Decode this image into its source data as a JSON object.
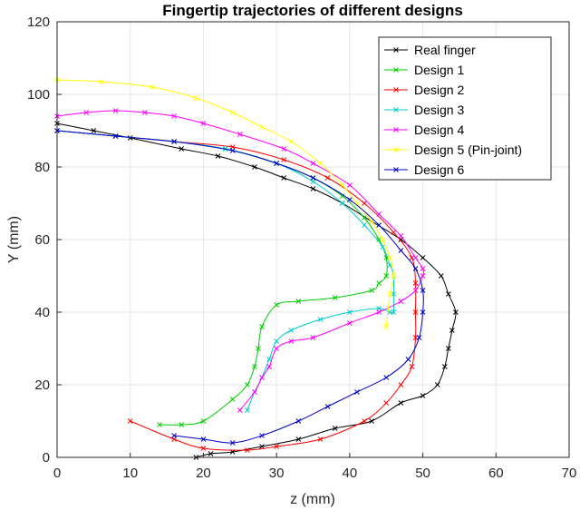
{
  "chart_data": {
    "type": "line",
    "title": "Fingertip trajectories of different designs",
    "xlabel": "z (mm)",
    "ylabel": "Y (mm)",
    "xlim": [
      0,
      70
    ],
    "ylim": [
      0,
      120
    ],
    "xticks": [
      "0",
      "10",
      "20",
      "30",
      "40",
      "50",
      "60",
      "70"
    ],
    "yticks": [
      "0",
      "20",
      "40",
      "60",
      "80",
      "100",
      "120"
    ],
    "grid": true,
    "legend_position": "top-right",
    "series": [
      {
        "name": "Real finger",
        "color": "#000000",
        "x": [
          0,
          5,
          10,
          17,
          22,
          27,
          31,
          35,
          39,
          43,
          47,
          50,
          52.5,
          53.5,
          54.5,
          54,
          53.5,
          53,
          52,
          50,
          47,
          43,
          38,
          33,
          28,
          24,
          21,
          19
        ],
        "y": [
          92,
          90,
          88,
          85,
          83,
          80,
          77,
          74,
          70,
          65,
          60,
          55,
          50,
          45,
          40,
          35,
          30,
          25,
          20,
          17,
          15,
          10,
          8,
          5,
          3,
          1.5,
          1,
          0
        ]
      },
      {
        "name": "Design 1",
        "color": "#00cc00",
        "x": [
          0,
          8,
          16,
          23,
          30,
          35,
          39,
          42,
          44,
          45,
          45,
          44,
          43,
          38,
          33,
          30,
          28,
          27.5,
          27,
          26,
          24,
          20,
          17,
          14
        ],
        "y": [
          90,
          88.5,
          87,
          85,
          81,
          77,
          72,
          66,
          60,
          55,
          50,
          48,
          46,
          44,
          43,
          42,
          36,
          30,
          25,
          20,
          16,
          10,
          9,
          9
        ]
      },
      {
        "name": "Design 2",
        "color": "#ff0000",
        "x": [
          0,
          8,
          16,
          24,
          31,
          37,
          42,
          46,
          48.5,
          49,
          49,
          49,
          48.5,
          47,
          45,
          42,
          36,
          30,
          26,
          20,
          16,
          10
        ],
        "y": [
          90,
          88.5,
          87,
          85.5,
          82,
          77,
          70,
          62,
          55,
          48,
          40,
          33,
          25,
          20,
          15,
          10,
          5,
          3,
          2,
          2.5,
          5,
          10
        ]
      },
      {
        "name": "Design 3",
        "color": "#00cccc",
        "x": [
          0,
          8,
          16,
          23,
          30,
          35,
          39,
          42,
          44.5,
          45.5,
          46,
          46,
          46,
          45.5,
          44,
          40,
          36,
          32,
          30,
          29,
          28,
          27,
          26
        ],
        "y": [
          90,
          88.5,
          87,
          85,
          81,
          76,
          70,
          64,
          58,
          53,
          50,
          45,
          40,
          40,
          41,
          40,
          38,
          35,
          32,
          27,
          22,
          18,
          13
        ]
      },
      {
        "name": "Design 4",
        "color": "#ff00ff",
        "x": [
          0,
          4,
          8,
          12,
          16,
          20,
          25,
          31,
          35,
          40,
          44,
          47,
          49,
          50,
          50,
          49,
          47,
          44,
          40,
          35,
          32,
          30,
          29,
          28,
          27,
          25
        ],
        "y": [
          94,
          95,
          95.5,
          95,
          94,
          92,
          89,
          85,
          81,
          75,
          67,
          61,
          55,
          52,
          50,
          46,
          43,
          40,
          37,
          33,
          32,
          30,
          25,
          22,
          18,
          13
        ]
      },
      {
        "name": "Design 5 (Pin-joint)",
        "color": "#ffff00",
        "x": [
          0,
          6,
          13,
          19,
          24,
          28,
          32,
          36,
          39,
          41,
          43,
          44.5,
          45.5,
          46,
          45.5,
          45
        ],
        "y": [
          104,
          103.5,
          102,
          99,
          95,
          91,
          87,
          81,
          75,
          70,
          65,
          60,
          55,
          50,
          45,
          36
        ]
      },
      {
        "name": "Design 6",
        "color": "#0000cc",
        "x": [
          0,
          8,
          16,
          24,
          30,
          35,
          40,
          44,
          47,
          49,
          50,
          50,
          49.5,
          48,
          45,
          41,
          37,
          33,
          28,
          24,
          20,
          16
        ],
        "y": [
          90,
          88.5,
          87,
          84.5,
          81,
          77,
          71,
          64,
          57,
          52,
          46,
          40,
          33,
          27,
          22,
          18,
          14,
          10,
          6,
          4,
          5,
          6
        ]
      }
    ]
  }
}
